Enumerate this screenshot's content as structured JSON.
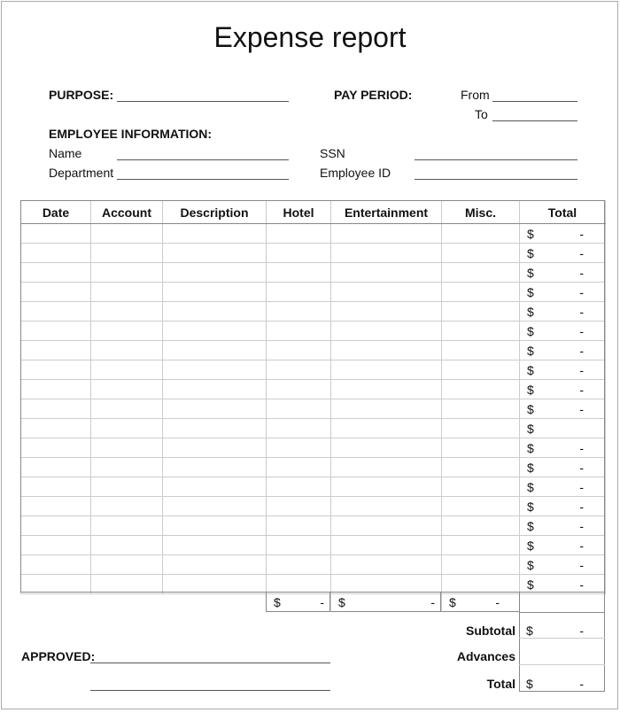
{
  "title": "Expense report",
  "header": {
    "purpose": "PURPOSE:",
    "pay_period": "PAY PERIOD:",
    "from": "From",
    "to": "To",
    "employee_info": "EMPLOYEE INFORMATION:",
    "name": "Name",
    "department": "Department",
    "ssn": "SSN",
    "employee_id": "Employee ID"
  },
  "table": {
    "columns": [
      "Date",
      "Account",
      "Description",
      "Hotel",
      "Entertainment",
      "Misc.",
      "Total"
    ],
    "rows_total": [
      [
        "$",
        "-"
      ],
      [
        "$",
        "-"
      ],
      [
        "$",
        "-"
      ],
      [
        "$",
        "-"
      ],
      [
        "$",
        "-"
      ],
      [
        "$",
        "-"
      ],
      [
        "$",
        "-"
      ],
      [
        "$",
        "-"
      ],
      [
        "$",
        "-"
      ],
      [
        "$",
        "-"
      ],
      [
        "$",
        ""
      ],
      [
        "$",
        "-"
      ],
      [
        "$",
        "-"
      ],
      [
        "$",
        "-"
      ],
      [
        "$",
        "-"
      ],
      [
        "$",
        "-"
      ],
      [
        "$",
        "-"
      ],
      [
        "$",
        "-"
      ],
      [
        "$",
        "-"
      ]
    ],
    "column_totals": {
      "hotel": [
        "$",
        "-"
      ],
      "entertainment": [
        "$",
        "-"
      ],
      "misc": [
        "$",
        "-"
      ]
    }
  },
  "summary": {
    "subtotal_label": "Subtotal",
    "subtotal": [
      "$",
      "-"
    ],
    "advances_label": "Advances",
    "total_label": "Total",
    "total": [
      "$",
      "-"
    ]
  },
  "approved": "APPROVED:"
}
